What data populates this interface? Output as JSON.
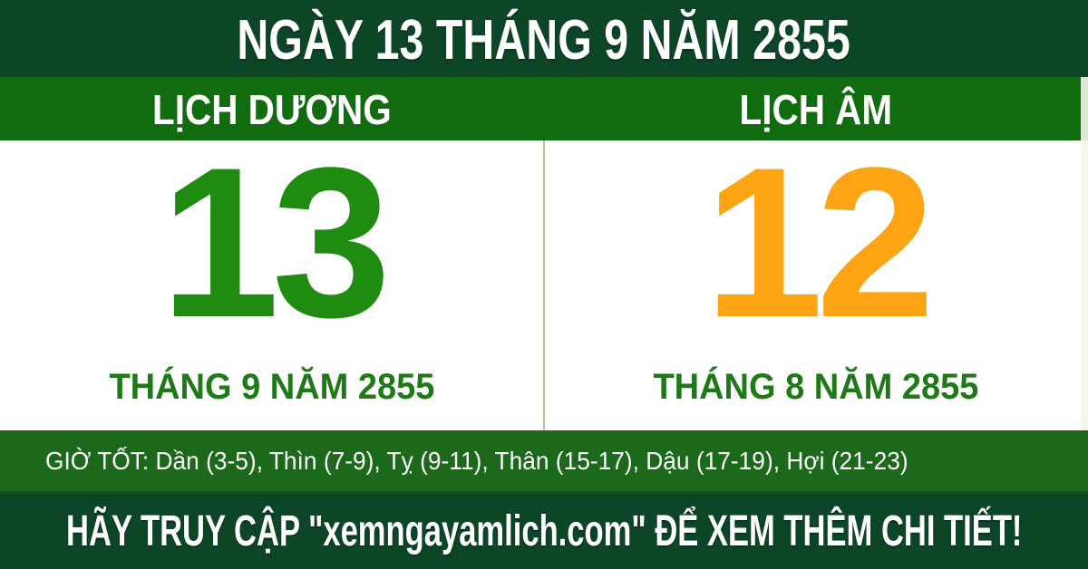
{
  "title_bar": {
    "text": "NGÀY 13 THÁNG 9 NĂM 2855"
  },
  "calendar": {
    "solar": {
      "header": "LỊCH DƯƠNG",
      "day": "13",
      "month_year": "THÁNG 9 NĂM 2855"
    },
    "lunar": {
      "header": "LỊCH ÂM",
      "day": "12",
      "month_year": "THÁNG 8 NĂM 2855"
    }
  },
  "good_hours_bar": {
    "text": "GIỜ TỐT: Dần (3-5), Thìn (7-9), Tỵ (9-11), Thân (15-17), Dậu (17-19), Hợi (21-23)"
  },
  "footer_bar": {
    "text": "HÃY TRUY CẬP \"xemngayamlich.com\" ĐỂ XEM THÊM CHI TIẾT!"
  },
  "colors": {
    "dark_green": "#0D4527",
    "header_green": "#116C10",
    "hours_green": "#1C691C",
    "solar_day_green": "#1F8B10",
    "lunar_day_orange": "#FCA414",
    "month_green": "#1D7A16",
    "divider_light_green": "#A5D48C",
    "text_white": "#FFFFFF"
  }
}
